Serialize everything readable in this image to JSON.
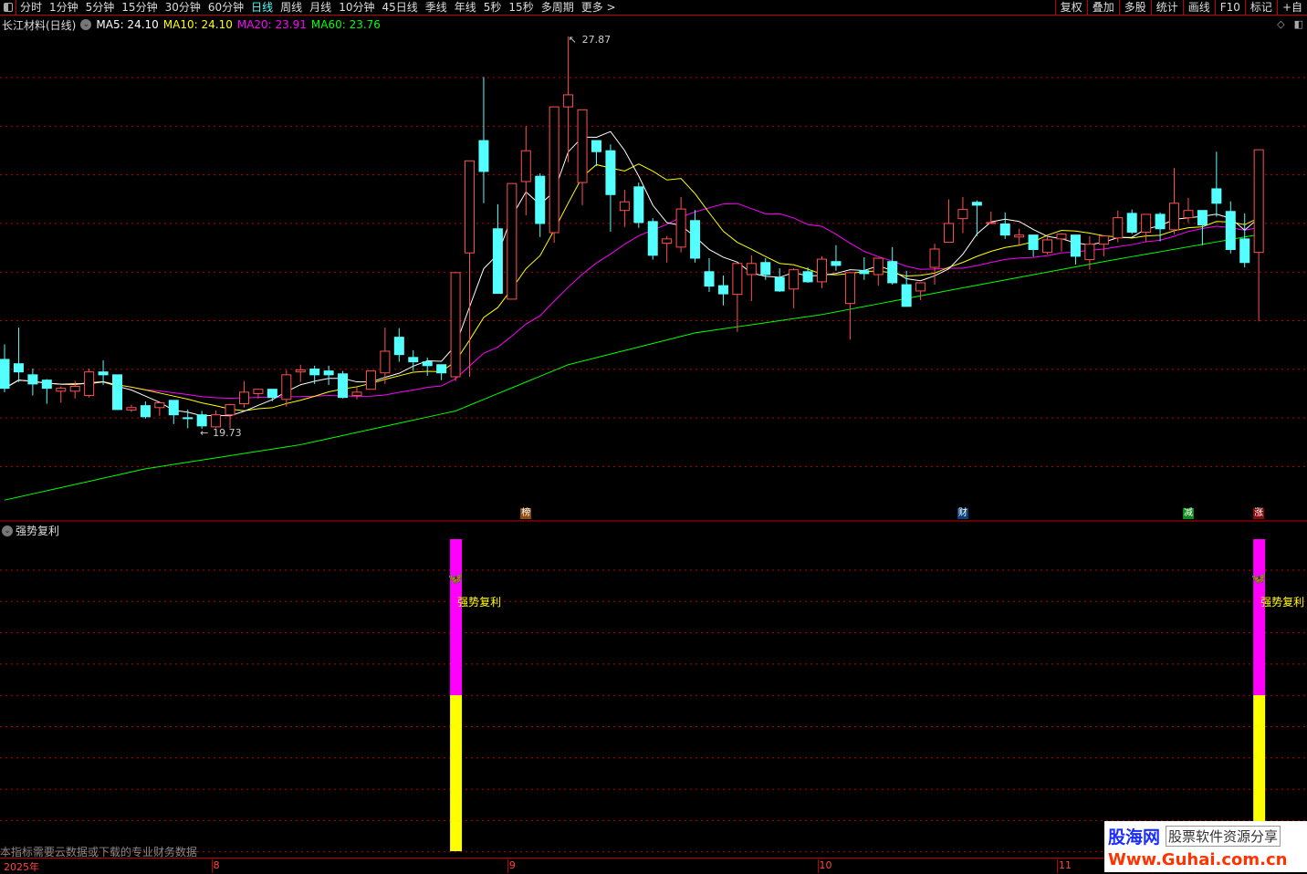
{
  "toolbar": {
    "periods": [
      "分时",
      "1分钟",
      "5分钟",
      "15分钟",
      "30分钟",
      "60分钟",
      "日线",
      "周线",
      "月线",
      "10分钟",
      "45日线",
      "季线",
      "年线",
      "5秒",
      "15秒",
      "多周期",
      "更多 >"
    ],
    "active": "日线",
    "right": [
      "复权",
      "叠加",
      "多股",
      "统计",
      "画线",
      "F10",
      "标记",
      "+自"
    ]
  },
  "legend": {
    "title": "长江材料(日线)",
    "ma5": "MA5: 24.10",
    "ma10": "MA10: 24.10",
    "ma20": "MA20: 23.91",
    "ma60": "MA60: 23.76"
  },
  "colors": {
    "up": "#ff5050",
    "down": "#54ffff",
    "ma5": "#ffffff",
    "ma10": "#ffff00",
    "ma20": "#ff00ff",
    "ma60": "#00ff00",
    "grid": "#c00000"
  },
  "chart_data": {
    "type": "candlestick",
    "ohlc": [
      [
        21.17,
        21.48,
        20.49,
        20.57
      ],
      [
        21.08,
        21.83,
        20.7,
        20.91
      ],
      [
        20.85,
        20.98,
        20.42,
        20.66
      ],
      [
        20.74,
        20.76,
        20.25,
        20.57
      ],
      [
        20.51,
        20.61,
        20.27,
        20.57
      ],
      [
        20.51,
        20.72,
        20.36,
        20.61
      ],
      [
        20.42,
        20.98,
        20.38,
        20.91
      ],
      [
        20.91,
        21.15,
        20.64,
        20.85
      ],
      [
        20.85,
        20.85,
        20.12,
        20.13
      ],
      [
        20.12,
        20.23,
        20.08,
        20.17
      ],
      [
        20.21,
        20.3,
        19.94,
        19.98
      ],
      [
        20.17,
        20.27,
        20.0,
        20.27
      ],
      [
        20.32,
        20.32,
        19.83,
        20.02
      ],
      [
        19.96,
        20.13,
        19.74,
        19.94
      ],
      [
        20.02,
        20.1,
        19.73,
        19.79
      ],
      [
        19.77,
        20.11,
        19.74,
        20.02
      ],
      [
        20.02,
        20.25,
        19.74,
        20.23
      ],
      [
        20.25,
        20.72,
        20.17,
        20.49
      ],
      [
        20.46,
        20.55,
        20.36,
        20.55
      ],
      [
        20.55,
        20.55,
        20.3,
        20.38
      ],
      [
        20.34,
        20.95,
        20.19,
        20.85
      ],
      [
        20.91,
        21.06,
        20.7,
        20.95
      ],
      [
        20.97,
        21.04,
        20.66,
        20.85
      ],
      [
        20.93,
        21.04,
        20.64,
        20.85
      ],
      [
        20.87,
        20.93,
        20.36,
        20.38
      ],
      [
        20.42,
        20.59,
        20.34,
        20.49
      ],
      [
        20.55,
        20.93,
        20.55,
        20.93
      ],
      [
        20.89,
        21.83,
        20.66,
        21.34
      ],
      [
        21.63,
        21.82,
        21.12,
        21.27
      ],
      [
        21.21,
        21.36,
        20.93,
        21.12
      ],
      [
        21.12,
        21.21,
        20.83,
        21.04
      ],
      [
        21.06,
        21.06,
        20.74,
        20.89
      ],
      [
        20.81,
        22.97,
        20.72,
        22.97
      ],
      [
        23.38,
        25.29,
        20.81,
        25.29
      ],
      [
        25.71,
        27.03,
        24.41,
        25.07
      ],
      [
        23.88,
        24.39,
        22.54,
        22.54
      ],
      [
        22.42,
        24.82,
        22.42,
        24.82
      ],
      [
        24.86,
        26.01,
        24.16,
        25.5
      ],
      [
        24.97,
        25.03,
        23.71,
        23.99
      ],
      [
        23.8,
        26.41,
        23.59,
        26.41
      ],
      [
        26.41,
        27.87,
        25.26,
        26.66
      ],
      [
        24.84,
        26.35,
        24.37,
        26.35
      ],
      [
        25.71,
        25.71,
        25.18,
        25.48
      ],
      [
        25.5,
        25.63,
        23.82,
        24.59
      ],
      [
        24.26,
        24.69,
        23.92,
        24.44
      ],
      [
        24.75,
        24.84,
        23.9,
        24.01
      ],
      [
        24.03,
        24.1,
        23.24,
        23.33
      ],
      [
        23.58,
        23.73,
        23.18,
        23.67
      ],
      [
        23.5,
        24.54,
        23.39,
        24.29
      ],
      [
        24.05,
        24.27,
        23.18,
        23.27
      ],
      [
        22.99,
        23.27,
        22.57,
        22.69
      ],
      [
        22.7,
        22.91,
        22.29,
        22.53
      ],
      [
        22.52,
        23.16,
        21.74,
        23.16
      ],
      [
        22.93,
        23.33,
        22.38,
        23.16
      ],
      [
        23.18,
        23.27,
        22.82,
        22.93
      ],
      [
        22.87,
        23.06,
        22.57,
        22.59
      ],
      [
        22.63,
        23.06,
        22.23,
        23.03
      ],
      [
        22.99,
        23.08,
        22.76,
        22.78
      ],
      [
        22.78,
        23.31,
        22.65,
        23.25
      ],
      [
        23.2,
        23.54,
        23.01,
        23.12
      ],
      [
        22.33,
        22.97,
        21.58,
        22.97
      ],
      [
        23.01,
        23.29,
        22.82,
        22.95
      ],
      [
        22.93,
        23.27,
        22.7,
        23.27
      ],
      [
        23.2,
        23.5,
        22.72,
        22.76
      ],
      [
        22.72,
        23.01,
        22.27,
        22.27
      ],
      [
        22.59,
        22.76,
        22.4,
        22.76
      ],
      [
        23.08,
        23.57,
        22.72,
        23.46
      ],
      [
        23.6,
        24.49,
        23.6,
        23.99
      ],
      [
        24.09,
        24.54,
        23.79,
        24.28
      ],
      [
        24.43,
        24.47,
        23.73,
        24.37
      ],
      [
        23.99,
        24.24,
        23.99,
        24.01
      ],
      [
        23.98,
        24.22,
        23.67,
        23.75
      ],
      [
        23.71,
        23.88,
        23.52,
        23.75
      ],
      [
        23.75,
        23.75,
        23.3,
        23.45
      ],
      [
        23.39,
        23.73,
        23.35,
        23.65
      ],
      [
        23.67,
        23.79,
        23.41,
        23.77
      ],
      [
        23.75,
        23.75,
        23.14,
        23.31
      ],
      [
        23.24,
        23.73,
        23.03,
        23.56
      ],
      [
        23.56,
        23.75,
        23.31,
        23.73
      ],
      [
        23.69,
        24.26,
        23.6,
        24.11
      ],
      [
        24.2,
        24.28,
        23.77,
        23.81
      ],
      [
        23.81,
        24.18,
        23.6,
        24.18
      ],
      [
        24.18,
        24.22,
        23.62,
        23.88
      ],
      [
        23.86,
        25.14,
        23.77,
        24.41
      ],
      [
        24.11,
        24.52,
        24.01,
        24.26
      ],
      [
        24.26,
        24.26,
        23.54,
        23.96
      ],
      [
        24.71,
        25.48,
        24.13,
        24.41
      ],
      [
        24.24,
        24.45,
        23.37,
        23.45
      ],
      [
        23.67,
        24.2,
        23.08,
        23.18
      ],
      [
        23.39,
        25.52,
        21.96,
        25.52
      ]
    ],
    "ma60_keypoints": [
      [
        0,
        18.25
      ],
      [
        10,
        18.9
      ],
      [
        21,
        19.4
      ],
      [
        32,
        20.1
      ],
      [
        40,
        21.06
      ],
      [
        49,
        21.72
      ],
      [
        58,
        22.1
      ],
      [
        67,
        22.6
      ],
      [
        78,
        23.2
      ],
      [
        89,
        23.76
      ]
    ],
    "high_label": "27.87",
    "low_label": "19.73",
    "high_index": 40,
    "low_index": 14,
    "signals": [
      {
        "index": 37,
        "text": "榜",
        "color": "#8a4a10"
      },
      {
        "index": 68,
        "text": "财",
        "color": "#0a3f7a"
      },
      {
        "index": 84,
        "text": "减",
        "color": "#0a8a1a"
      },
      {
        "index": 89,
        "text": "涨",
        "color": "#8a0a0a"
      }
    ],
    "x_labels": [
      {
        "index": 0,
        "text": "2025年"
      },
      {
        "index": 15,
        "text": "8"
      },
      {
        "index": 36,
        "text": "9"
      },
      {
        "index": 58,
        "text": "10"
      },
      {
        "index": 75,
        "text": "11"
      }
    ]
  },
  "indicator": {
    "title": "强势复利",
    "signal_label": "强势复利",
    "signal_indices": [
      32,
      89
    ],
    "bar_colors": [
      "#ff00ff",
      "#ffff00"
    ],
    "note": "本指标需要云数据或下载的专业财务数据"
  },
  "watermark": {
    "name": "股海网",
    "slogan": "股票软件资源分享",
    "url": "Www.Guhai.com.cn"
  }
}
